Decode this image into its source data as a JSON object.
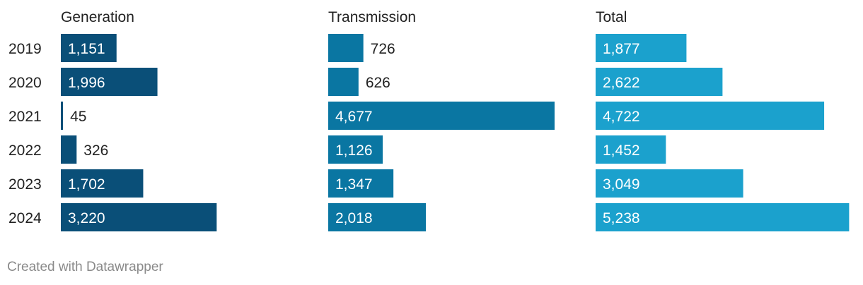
{
  "chart_data": {
    "type": "bar",
    "orientation": "horizontal",
    "categories": [
      "2019",
      "2020",
      "2021",
      "2022",
      "2023",
      "2024"
    ],
    "series": [
      {
        "name": "Generation",
        "values": [
          1151,
          1996,
          45,
          326,
          1702,
          3220
        ],
        "labels": [
          "1,151",
          "1,996",
          "45",
          "326",
          "1,702",
          "3,220"
        ],
        "color": "#0a4f78"
      },
      {
        "name": "Transmission",
        "values": [
          726,
          626,
          4677,
          1126,
          1347,
          2018
        ],
        "labels": [
          "726",
          "626",
          "4,677",
          "1,126",
          "1,347",
          "2,018"
        ],
        "color": "#0a76a2"
      },
      {
        "name": "Total",
        "values": [
          1877,
          2622,
          4722,
          1452,
          3049,
          5238
        ],
        "labels": [
          "1,877",
          "2,622",
          "4,722",
          "1,452",
          "3,049",
          "5,238"
        ],
        "color": "#1ba1cd"
      }
    ],
    "grid": false,
    "legend": "none"
  },
  "footer": {
    "credit": "Created with Datawrapper"
  }
}
